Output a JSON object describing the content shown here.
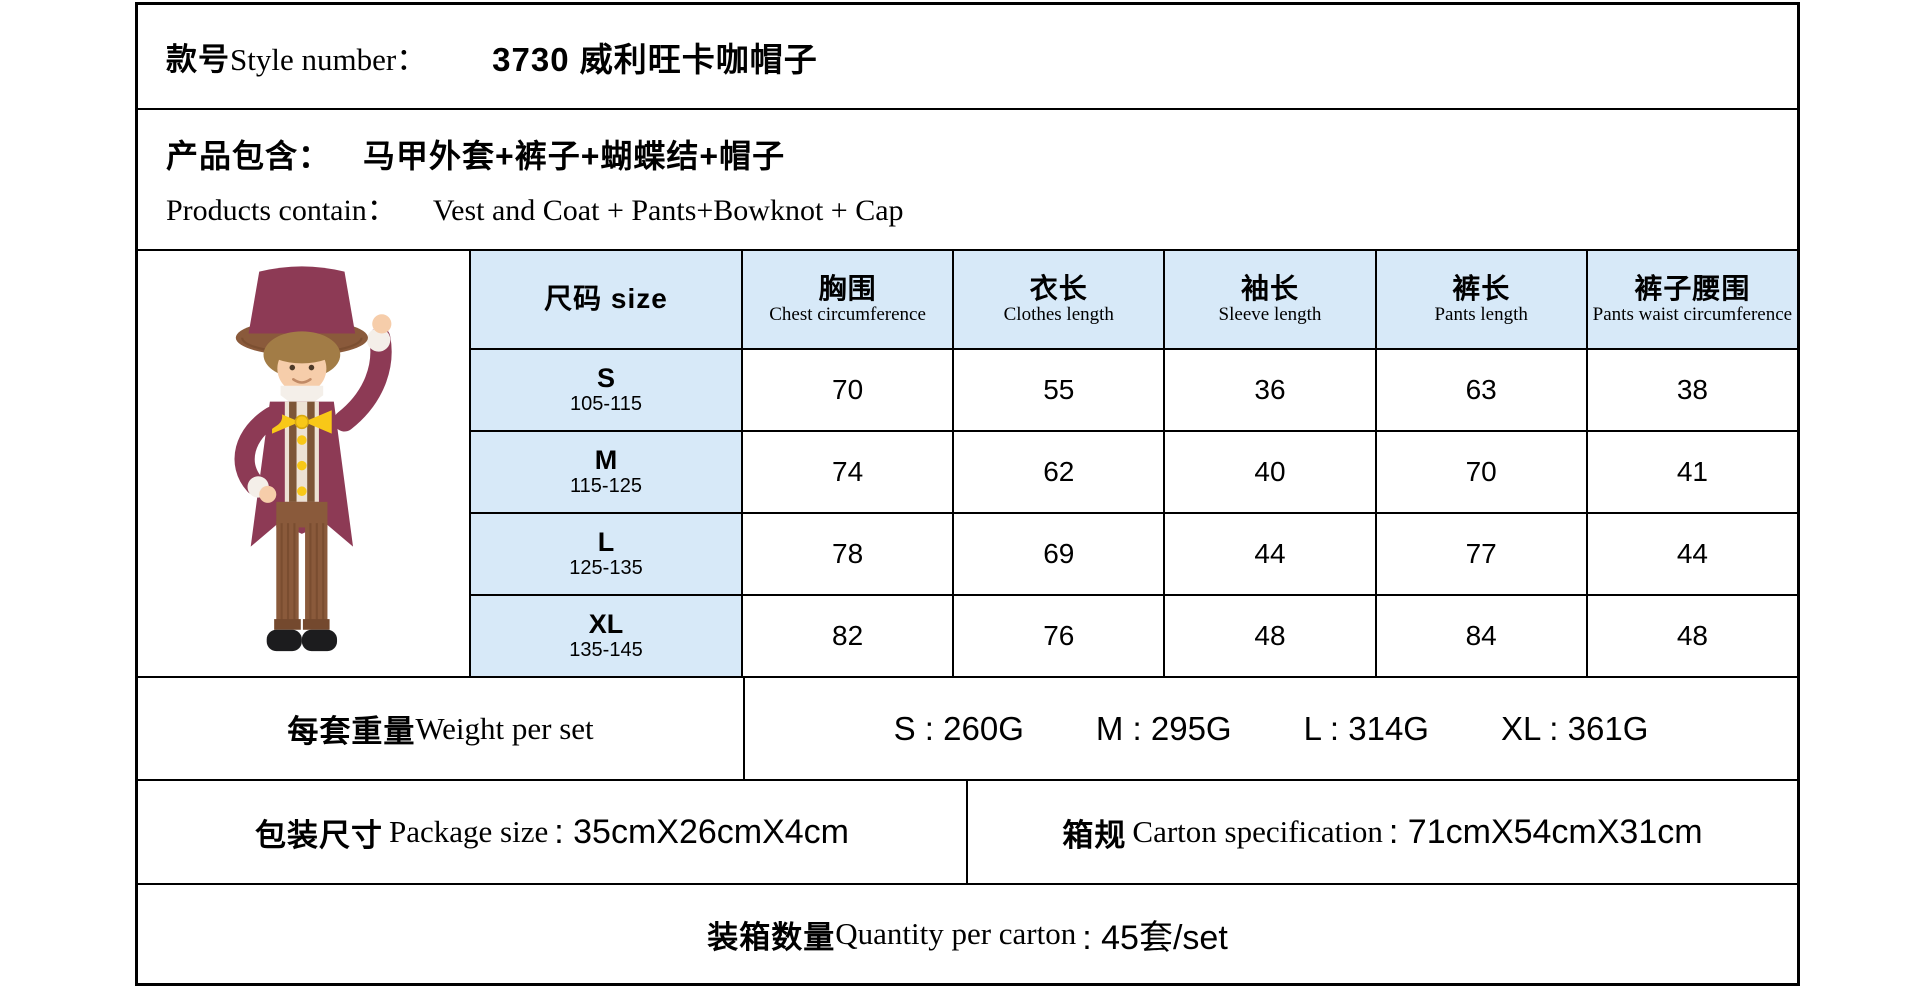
{
  "header": {
    "label_cn": "款号",
    "label_en": "Style number：",
    "value": "3730 威利旺卡咖帽子"
  },
  "products": {
    "label_cn": "产品包含：",
    "value_cn": "马甲外套+裤子+蝴蝶结+帽子",
    "label_en": "Products contain：",
    "value_en": "Vest and Coat + Pants+Bowknot + Cap"
  },
  "size_table": {
    "size_header": "尺码 size",
    "columns": [
      {
        "cn": "胸围",
        "en": "Chest circumference"
      },
      {
        "cn": "衣长",
        "en": "Clothes length"
      },
      {
        "cn": "袖长",
        "en": "Sleeve length"
      },
      {
        "cn": "裤长",
        "en": "Pants length"
      },
      {
        "cn": "裤子腰围",
        "en": "Pants waist circumference"
      }
    ],
    "rows": [
      {
        "size": "S",
        "range": "105-115",
        "values": [
          "70",
          "55",
          "36",
          "63",
          "38"
        ]
      },
      {
        "size": "M",
        "range": "115-125",
        "values": [
          "74",
          "62",
          "40",
          "70",
          "41"
        ]
      },
      {
        "size": "L",
        "range": "125-135",
        "values": [
          "78",
          "69",
          "44",
          "77",
          "44"
        ]
      },
      {
        "size": "XL",
        "range": "135-145",
        "values": [
          "82",
          "76",
          "48",
          "84",
          "48"
        ]
      }
    ]
  },
  "weight": {
    "label_cn": "每套重量",
    "label_en": "Weight per set",
    "values": [
      "S : 260G",
      "M : 295G",
      "L : 314G",
      "XL : 361G"
    ]
  },
  "package": {
    "label_cn": "包装尺寸",
    "label_en": "Package size",
    "value": ": 35cmX26cmX4cm"
  },
  "carton": {
    "label_cn": "箱规",
    "label_en": "Carton specification",
    "value": ": 71cmX54cmX31cm"
  },
  "quantity": {
    "label_cn": "装箱数量",
    "label_en": "Quantity per carton",
    "value": ": 45套/set"
  },
  "product_image": {
    "alt": "child-willy-wonka-costume-photo"
  },
  "colors": {
    "header_blue": "#d7e9f8",
    "border_black": "#000000",
    "coat_maroon": "#8d3a55",
    "hat_brim_brown": "#8a5a3b",
    "pants_brown": "#8a5a3b",
    "pants_stripe": "#6e4428",
    "bow_yellow": "#f8c818",
    "vest_cream": "#ece2d4",
    "vest_lace": "#7d5637",
    "skin": "#f6cdaa",
    "hair": "#a27c46",
    "shoes_black": "#1c1c1e",
    "collar_white": "#f4efe9"
  }
}
